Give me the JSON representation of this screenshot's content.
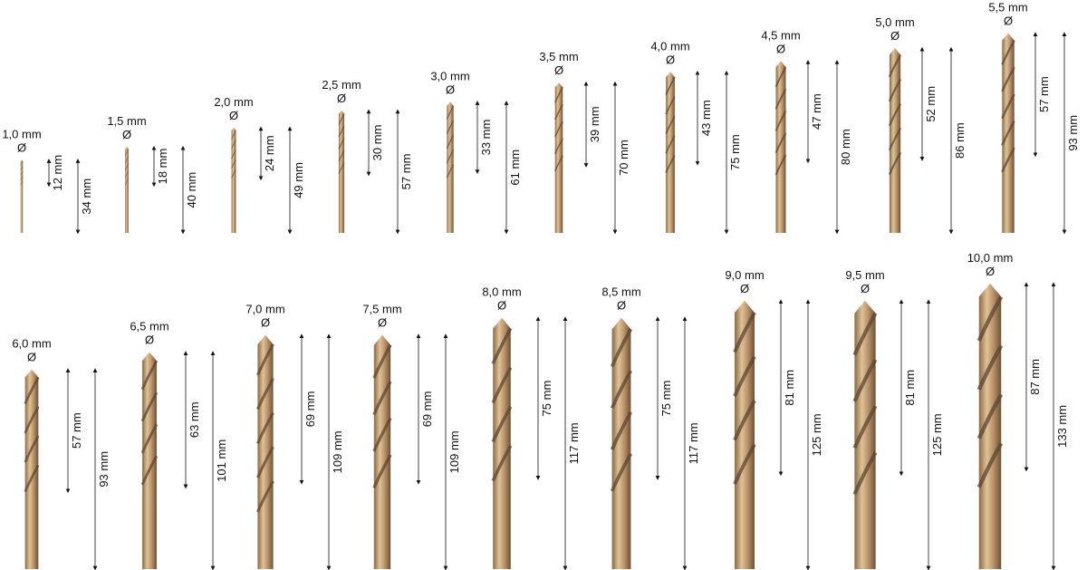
{
  "colors": {
    "bit_light": "#d9b88a",
    "bit_mid": "#b08a5c",
    "bit_dark": "#5e4630",
    "arrow": "#111111"
  },
  "diameter_symbol": "Ø",
  "rows": [
    {
      "bits": [
        {
          "diameter": "1,0 mm",
          "flute": "12 mm",
          "total": "34 mm",
          "flute_mm": 12,
          "total_mm": 34,
          "dia_mm": 1.0
        },
        {
          "diameter": "1,5 mm",
          "flute": "18 mm",
          "total": "40 mm",
          "flute_mm": 18,
          "total_mm": 40,
          "dia_mm": 1.5
        },
        {
          "diameter": "2,0 mm",
          "flute": "24 mm",
          "total": "49 mm",
          "flute_mm": 24,
          "total_mm": 49,
          "dia_mm": 2.0
        },
        {
          "diameter": "2,5 mm",
          "flute": "30 mm",
          "total": "57 mm",
          "flute_mm": 30,
          "total_mm": 57,
          "dia_mm": 2.5
        },
        {
          "diameter": "3,0 mm",
          "flute": "33 mm",
          "total": "61 mm",
          "flute_mm": 33,
          "total_mm": 61,
          "dia_mm": 3.0
        },
        {
          "diameter": "3,5 mm",
          "flute": "39 mm",
          "total": "70 mm",
          "flute_mm": 39,
          "total_mm": 70,
          "dia_mm": 3.5
        },
        {
          "diameter": "4,0 mm",
          "flute": "43 mm",
          "total": "75 mm",
          "flute_mm": 43,
          "total_mm": 75,
          "dia_mm": 4.0
        },
        {
          "diameter": "4,5 mm",
          "flute": "47 mm",
          "total": "80 mm",
          "flute_mm": 47,
          "total_mm": 80,
          "dia_mm": 4.5
        },
        {
          "diameter": "5,0 mm",
          "flute": "52 mm",
          "total": "86 mm",
          "flute_mm": 52,
          "total_mm": 86,
          "dia_mm": 5.0
        },
        {
          "diameter": "5,5 mm",
          "flute": "57 mm",
          "total": "93 mm",
          "flute_mm": 57,
          "total_mm": 93,
          "dia_mm": 5.5
        }
      ]
    },
    {
      "bits": [
        {
          "diameter": "6,0 mm",
          "flute": "57 mm",
          "total": "93 mm",
          "flute_mm": 57,
          "total_mm": 93,
          "dia_mm": 6.0
        },
        {
          "diameter": "6,5 mm",
          "flute": "63 mm",
          "total": "101 mm",
          "flute_mm": 63,
          "total_mm": 101,
          "dia_mm": 6.5
        },
        {
          "diameter": "7,0 mm",
          "flute": "69 mm",
          "total": "109 mm",
          "flute_mm": 69,
          "total_mm": 109,
          "dia_mm": 7.0
        },
        {
          "diameter": "7,5 mm",
          "flute": "69 mm",
          "total": "109 mm",
          "flute_mm": 69,
          "total_mm": 109,
          "dia_mm": 7.5
        },
        {
          "diameter": "8,0 mm",
          "flute": "75 mm",
          "total": "117 mm",
          "flute_mm": 75,
          "total_mm": 117,
          "dia_mm": 8.0
        },
        {
          "diameter": "8,5 mm",
          "flute": "75 mm",
          "total": "117 mm",
          "flute_mm": 75,
          "total_mm": 117,
          "dia_mm": 8.5
        },
        {
          "diameter": "9,0 mm",
          "flute": "81 mm",
          "total": "125 mm",
          "flute_mm": 81,
          "total_mm": 125,
          "dia_mm": 9.0
        },
        {
          "diameter": "9,5 mm",
          "flute": "81 mm",
          "total": "125 mm",
          "flute_mm": 81,
          "total_mm": 125,
          "dia_mm": 9.5
        },
        {
          "diameter": "10,0 mm",
          "flute": "87 mm",
          "total": "133 mm",
          "flute_mm": 87,
          "total_mm": 133,
          "dia_mm": 10.0
        }
      ]
    }
  ]
}
